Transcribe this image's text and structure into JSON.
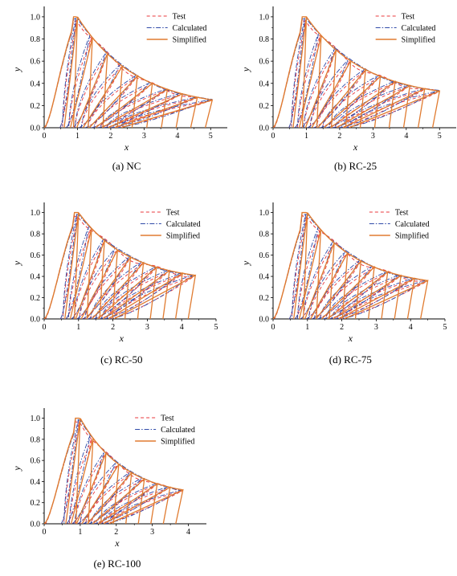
{
  "series_styles": [
    {
      "key": "test",
      "color": "#e8383d",
      "dash": "4,3"
    },
    {
      "key": "calculated",
      "color": "#2f4aa8",
      "dash": "6,2,1.5,2"
    },
    {
      "key": "simplified",
      "color": "#e07b30",
      "dash": ""
    }
  ],
  "chart_data": [
    {
      "type": "line",
      "caption": "(a) NC",
      "xlabel": "x",
      "ylabel": "y",
      "xlim": [
        0,
        5.5
      ],
      "ylim": [
        0,
        1.05
      ],
      "xticks": [
        0,
        1,
        2,
        3,
        4,
        5
      ],
      "yticks": [
        0.0,
        0.2,
        0.4,
        0.6,
        0.8,
        1.0
      ],
      "legend": [
        "Test",
        "Calculated",
        "Simplified"
      ],
      "legend_position": "top-right",
      "envelope": {
        "peak_x": 1.0,
        "end_x": 5.05,
        "end_y": 0.25
      },
      "cycles": 10
    },
    {
      "type": "line",
      "caption": "(b) RC-25",
      "xlabel": "x",
      "ylabel": "y",
      "xlim": [
        0,
        5.5
      ],
      "ylim": [
        0,
        1.05
      ],
      "xticks": [
        0,
        1,
        2,
        3,
        4,
        5
      ],
      "yticks": [
        0.0,
        0.2,
        0.4,
        0.6,
        0.8,
        1.0
      ],
      "legend": [
        "Test",
        "Calculated",
        "Simplified"
      ],
      "legend_position": "top-right",
      "envelope": {
        "peak_x": 1.0,
        "end_x": 5.0,
        "end_y": 0.33
      },
      "cycles": 10
    },
    {
      "type": "line",
      "caption": "(c) RC-50",
      "xlabel": "x",
      "ylabel": "y",
      "xlim": [
        0,
        5.0
      ],
      "ylim": [
        0,
        1.05
      ],
      "xticks": [
        0,
        1,
        2,
        3,
        4,
        5
      ],
      "yticks": [
        0.0,
        0.2,
        0.4,
        0.6,
        0.8,
        1.0
      ],
      "legend": [
        "Test",
        "Calculated",
        "Simplified"
      ],
      "legend_position": "top-right",
      "envelope": {
        "peak_x": 1.0,
        "end_x": 4.4,
        "end_y": 0.41
      },
      "cycles": 10
    },
    {
      "type": "line",
      "caption": "(d) RC-75",
      "xlabel": "x",
      "ylabel": "y",
      "xlim": [
        0,
        5.0
      ],
      "ylim": [
        0,
        1.05
      ],
      "xticks": [
        0,
        1,
        2,
        3,
        4,
        5
      ],
      "yticks": [
        0.0,
        0.2,
        0.4,
        0.6,
        0.8,
        1.0
      ],
      "legend": [
        "Test",
        "Calculated",
        "Simplified"
      ],
      "legend_position": "top-right",
      "envelope": {
        "peak_x": 1.0,
        "end_x": 4.5,
        "end_y": 0.36
      },
      "cycles": 10
    },
    {
      "type": "line",
      "caption": "(e) RC-100",
      "xlabel": "x",
      "ylabel": "y",
      "xlim": [
        0,
        4.5
      ],
      "ylim": [
        0,
        1.05
      ],
      "xticks": [
        0,
        1,
        2,
        3,
        4
      ],
      "yticks": [
        0.0,
        0.2,
        0.4,
        0.6,
        0.8,
        1.0
      ],
      "legend": [
        "Test",
        "Calculated",
        "Simplified"
      ],
      "legend_position": "top-right",
      "envelope": {
        "peak_x": 1.0,
        "end_x": 3.85,
        "end_y": 0.32
      },
      "cycles": 9
    }
  ]
}
